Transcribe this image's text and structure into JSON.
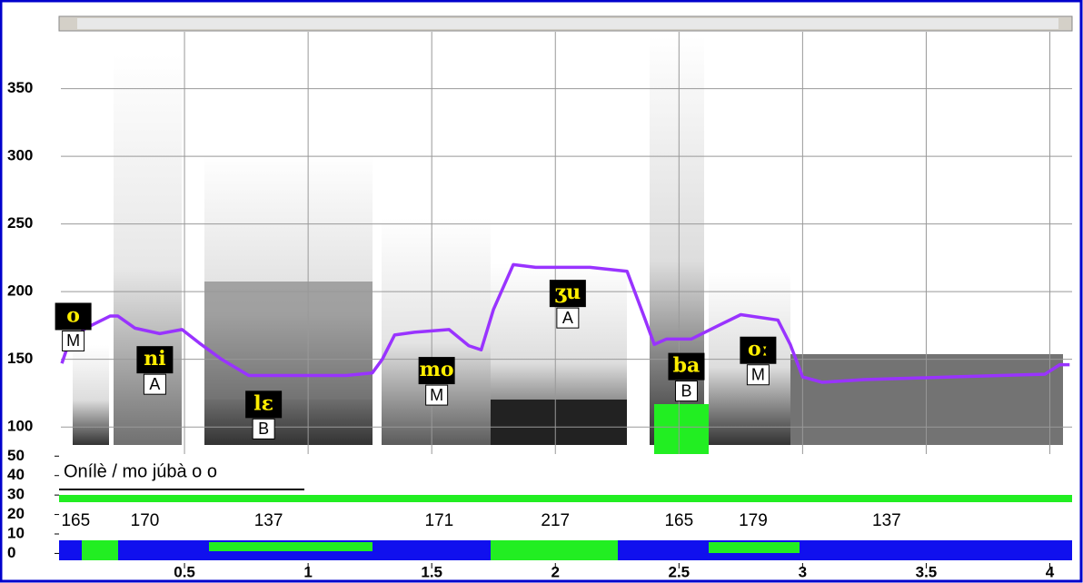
{
  "chart_data": {
    "type": "line",
    "xlim": [
      0,
      4.09
    ],
    "ylim": [
      80,
      392
    ],
    "xticks": [
      0.5,
      1,
      1.5,
      2,
      2.5,
      3,
      3.5,
      4
    ],
    "yticks": [
      100,
      150,
      200,
      250,
      300,
      350
    ],
    "grid": true,
    "series": [
      {
        "color": "#9933ff",
        "x": [
          0.004,
          0.03,
          0.1,
          0.2,
          0.23,
          0.3,
          0.4,
          0.49,
          0.56,
          0.65,
          0.76,
          0.93,
          1.15,
          1.26,
          1.3,
          1.35,
          1.43,
          1.57,
          1.65,
          1.7,
          1.75,
          1.83,
          1.92,
          2.14,
          2.29,
          2.36,
          2.4,
          2.45,
          2.55,
          2.66,
          2.75,
          2.9,
          2.95,
          3.0,
          3.08,
          3.25,
          3.61,
          3.98,
          4.04,
          4.08
        ],
        "values": [
          147,
          161,
          173,
          182,
          182,
          173,
          169,
          172,
          162,
          150,
          138,
          138,
          138,
          140,
          150,
          168,
          170,
          172,
          160,
          157,
          187,
          220,
          218,
          218,
          215,
          181,
          161,
          165,
          165,
          175,
          183,
          179,
          161,
          137,
          133,
          135,
          137,
          139,
          146,
          146
        ]
      }
    ],
    "annotations": [
      {
        "text": "o",
        "tone": "M",
        "x": 0.05,
        "y": 181
      },
      {
        "text": "ni",
        "tone": "A",
        "x": 0.38,
        "y": 149
      },
      {
        "text": "lɛ",
        "tone": "B",
        "x": 0.82,
        "y": 116
      },
      {
        "text": "mo",
        "tone": "M",
        "x": 1.52,
        "y": 141
      },
      {
        "text": "ʒu",
        "tone": "A",
        "x": 2.05,
        "y": 198
      },
      {
        "text": "ba",
        "tone": "B",
        "x": 2.53,
        "y": 144
      },
      {
        "text": "oː",
        "tone": "M",
        "x": 2.82,
        "y": 156
      }
    ],
    "pitch_values": {
      "x": [
        0.06,
        0.34,
        0.84,
        1.53,
        2.0,
        2.5,
        2.8,
        3.34
      ],
      "values": [
        165,
        170,
        137,
        171,
        217,
        165,
        179,
        137
      ]
    },
    "lower_panel": {
      "ylim": [
        -4,
        52
      ],
      "yticks": [
        0,
        10,
        20,
        30,
        40,
        50
      ],
      "text": "Onílè / mo júbà o o"
    }
  }
}
